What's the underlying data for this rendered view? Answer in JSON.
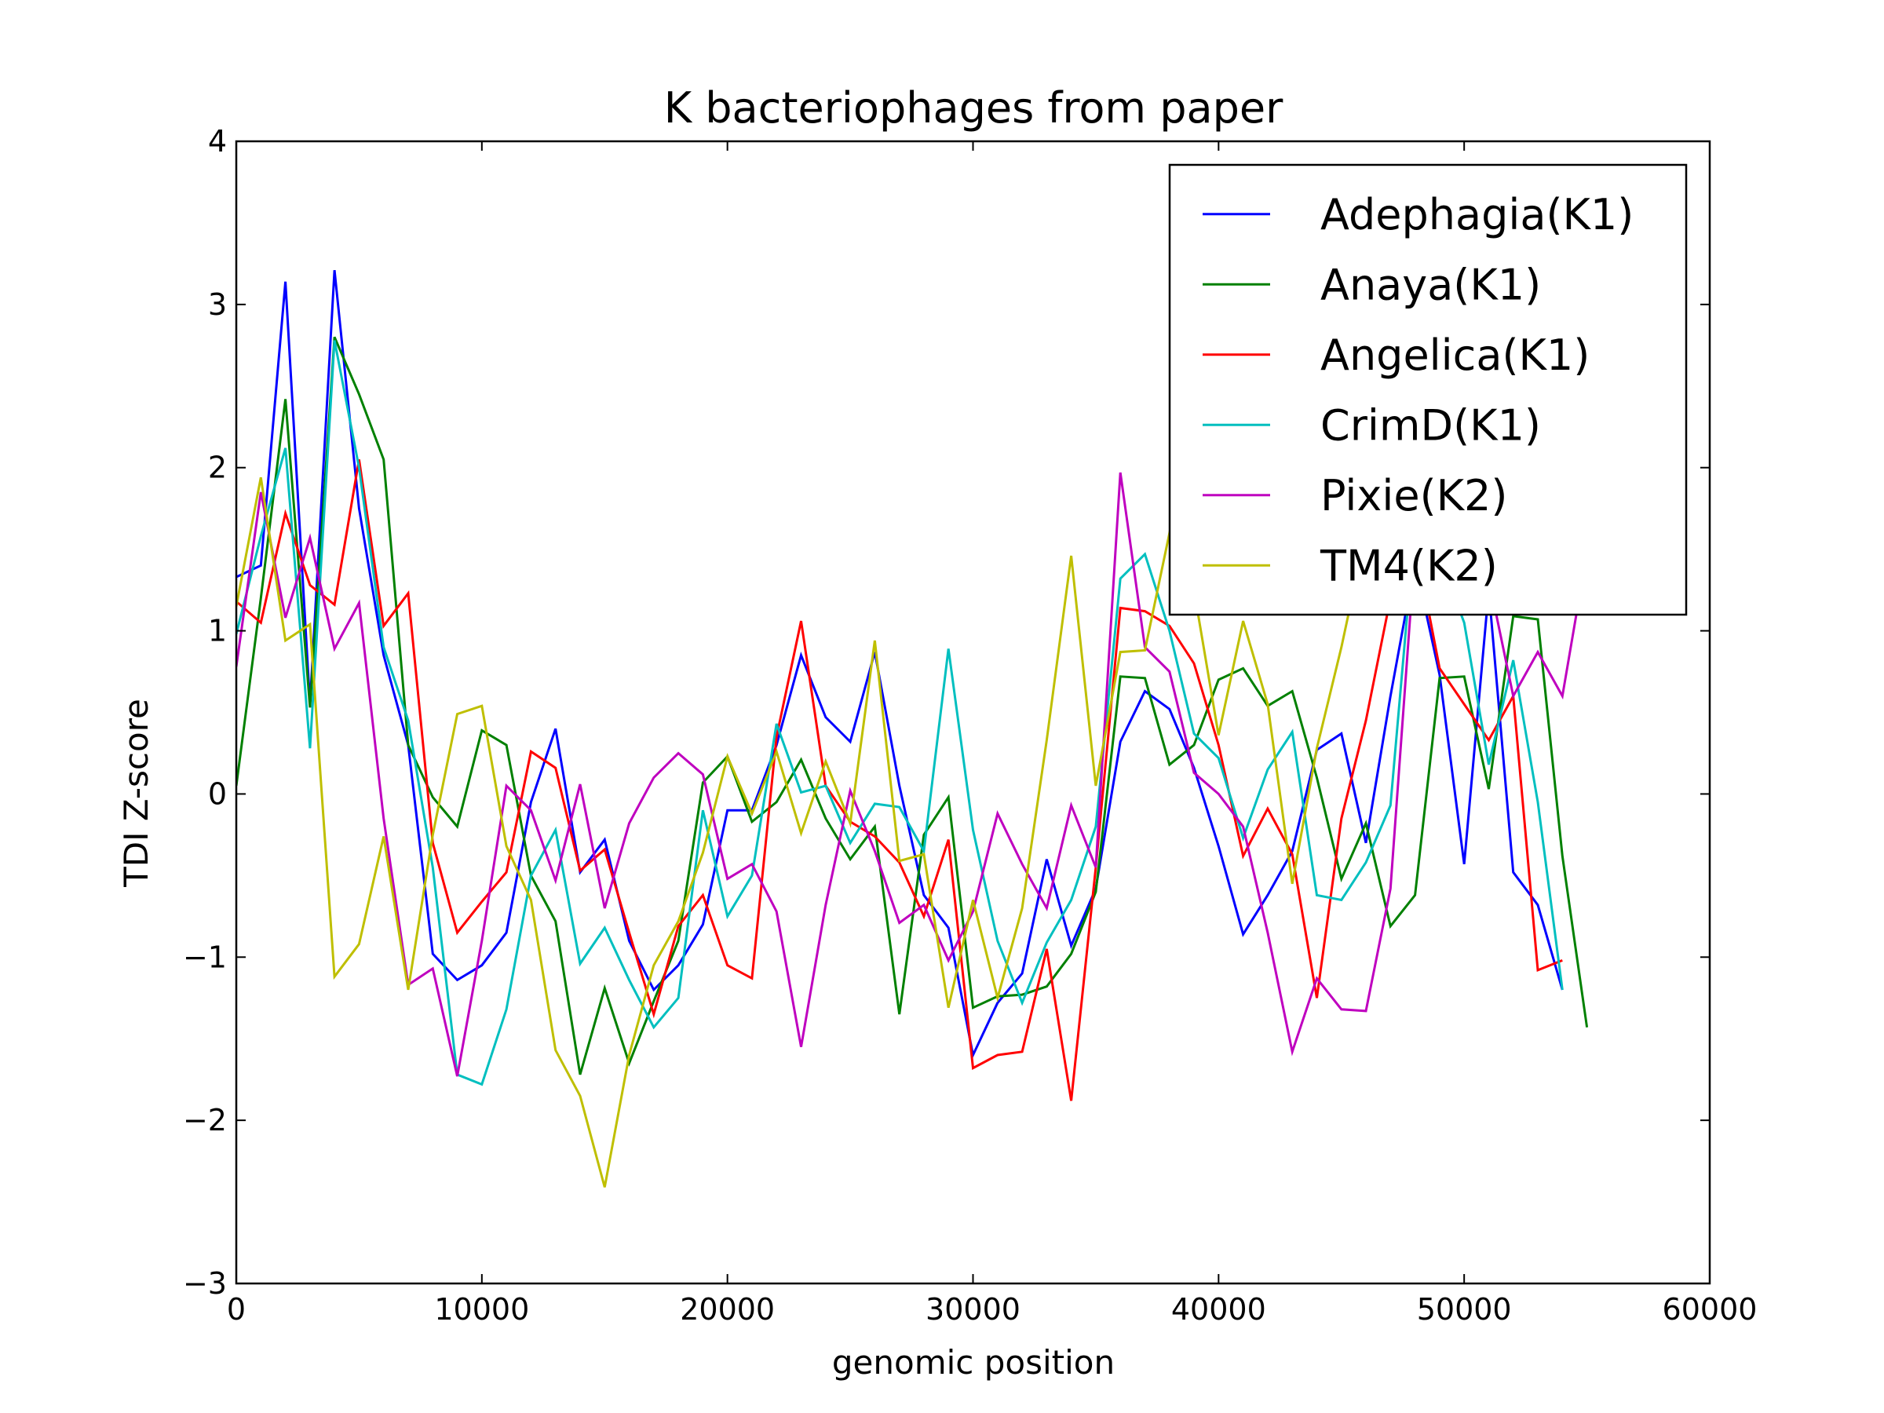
{
  "chart_data": {
    "type": "line",
    "title": "K bacteriophages from paper",
    "xlabel": "genomic position",
    "ylabel": "TDI Z-score",
    "xlim": [
      0,
      60000
    ],
    "ylim": [
      -3,
      4
    ],
    "xticks": [
      0,
      10000,
      20000,
      30000,
      40000,
      50000,
      60000
    ],
    "yticks": [
      -3,
      -2,
      -1,
      0,
      1,
      2,
      3,
      4
    ],
    "xtick_labels": [
      "0",
      "10000",
      "20000",
      "30000",
      "40000",
      "50000",
      "60000"
    ],
    "ytick_labels": [
      "−3",
      "−2",
      "−1",
      "0",
      "1",
      "2",
      "3",
      "4"
    ],
    "grid": false,
    "legend_position": "top-right",
    "series": [
      {
        "name": "Adephagia(K1)",
        "color": "#0000ff",
        "x": [
          0,
          1000,
          2000,
          3000,
          4000,
          5000,
          6000,
          7000,
          8000,
          9000,
          10000,
          11000,
          12000,
          13000,
          14000,
          15000,
          16000,
          17000,
          18000,
          19000,
          20000,
          21000,
          22000,
          23000,
          24000,
          25000,
          26000,
          27000,
          28000,
          29000,
          30000,
          31000,
          32000,
          33000,
          34000,
          35000,
          36000,
          37000,
          38000,
          39000,
          40000,
          41000,
          42000,
          43000,
          44000,
          45000,
          46000,
          47000,
          48000,
          49000,
          50000,
          51000,
          52000,
          53000,
          54000
        ],
        "y": [
          1.33,
          1.4,
          3.14,
          0.55,
          3.21,
          1.75,
          0.85,
          0.3,
          -0.98,
          -1.14,
          -1.05,
          -0.85,
          -0.05,
          0.4,
          -0.48,
          -0.28,
          -0.9,
          -1.2,
          -1.05,
          -0.8,
          -0.1,
          -0.1,
          0.3,
          0.85,
          0.47,
          0.32,
          0.87,
          0.05,
          -0.62,
          -0.82,
          -1.6,
          -1.28,
          -1.1,
          -0.4,
          -0.93,
          -0.58,
          0.32,
          0.63,
          0.52,
          0.16,
          -0.32,
          -0.86,
          -0.62,
          -0.35,
          0.27,
          0.37,
          -0.3,
          0.6,
          1.42,
          0.73,
          -0.43,
          1.25,
          -0.48,
          -0.68,
          -1.2
        ]
      },
      {
        "name": "Anaya(K1)",
        "color": "#008000",
        "x": [
          0,
          1000,
          2000,
          3000,
          4000,
          5000,
          6000,
          7000,
          8000,
          9000,
          10000,
          11000,
          12000,
          13000,
          14000,
          15000,
          16000,
          17000,
          18000,
          19000,
          20000,
          21000,
          22000,
          23000,
          24000,
          25000,
          26000,
          27000,
          28000,
          29000,
          30000,
          31000,
          32000,
          33000,
          34000,
          35000,
          36000,
          37000,
          38000,
          39000,
          40000,
          41000,
          42000,
          43000,
          44000,
          45000,
          46000,
          47000,
          48000,
          49000,
          50000,
          51000,
          52000,
          53000,
          54000,
          55000
        ],
        "y": [
          0.05,
          1.2,
          2.42,
          0.53,
          2.8,
          2.45,
          2.05,
          0.3,
          -0.02,
          -0.2,
          0.39,
          0.3,
          -0.5,
          -0.78,
          -1.72,
          -1.19,
          -1.65,
          -1.27,
          -0.9,
          0.07,
          0.23,
          -0.17,
          -0.05,
          0.21,
          -0.15,
          -0.4,
          -0.2,
          -1.35,
          -0.25,
          -0.02,
          -1.31,
          -1.24,
          -1.23,
          -1.18,
          -0.98,
          -0.6,
          0.72,
          0.71,
          0.18,
          0.3,
          0.7,
          0.77,
          0.54,
          0.63,
          0.1,
          -0.52,
          -0.18,
          -0.81,
          -0.62,
          0.71,
          0.72,
          0.03,
          1.09,
          1.07,
          -0.38,
          -1.43
        ]
      },
      {
        "name": "Angelica(K1)",
        "color": "#ff0000",
        "x": [
          0,
          1000,
          2000,
          3000,
          4000,
          5000,
          6000,
          7000,
          8000,
          9000,
          10000,
          11000,
          12000,
          13000,
          14000,
          15000,
          16000,
          17000,
          18000,
          19000,
          20000,
          21000,
          22000,
          23000,
          24000,
          25000,
          26000,
          27000,
          28000,
          29000,
          30000,
          31000,
          32000,
          33000,
          34000,
          35000,
          36000,
          37000,
          38000,
          39000,
          40000,
          41000,
          42000,
          43000,
          44000,
          45000,
          46000,
          47000,
          48000,
          49000,
          50000,
          51000,
          52000,
          53000,
          54000
        ],
        "y": [
          1.18,
          1.05,
          1.72,
          1.28,
          1.16,
          2.05,
          1.03,
          1.23,
          -0.3,
          -0.85,
          -0.66,
          -0.48,
          0.26,
          0.16,
          -0.47,
          -0.34,
          -0.85,
          -1.35,
          -0.81,
          -0.62,
          -1.05,
          -1.13,
          0.35,
          1.06,
          0.05,
          -0.17,
          -0.26,
          -0.42,
          -0.75,
          -0.28,
          -1.68,
          -1.6,
          -1.58,
          -0.95,
          -1.88,
          -0.45,
          1.14,
          1.12,
          1.03,
          0.8,
          0.3,
          -0.38,
          -0.09,
          -0.37,
          -1.25,
          -0.15,
          0.45,
          1.2,
          1.55,
          0.77,
          0.55,
          0.33,
          0.6,
          -1.08,
          -1.02
        ]
      },
      {
        "name": "CrimD(K1)",
        "color": "#00bfbf",
        "x": [
          0,
          1000,
          2000,
          3000,
          4000,
          5000,
          6000,
          7000,
          8000,
          9000,
          10000,
          11000,
          12000,
          13000,
          14000,
          15000,
          16000,
          17000,
          18000,
          19000,
          20000,
          21000,
          22000,
          23000,
          24000,
          25000,
          26000,
          27000,
          28000,
          29000,
          30000,
          31000,
          32000,
          33000,
          34000,
          35000,
          36000,
          37000,
          38000,
          39000,
          40000,
          41000,
          42000,
          43000,
          44000,
          45000,
          46000,
          47000,
          48000,
          49000,
          50000,
          51000,
          52000,
          53000,
          54000
        ],
        "y": [
          0.98,
          1.58,
          2.12,
          0.28,
          2.78,
          2.0,
          0.9,
          0.45,
          -0.45,
          -1.72,
          -1.78,
          -1.32,
          -0.5,
          -0.22,
          -1.04,
          -0.82,
          -1.14,
          -1.43,
          -1.25,
          -0.1,
          -0.75,
          -0.5,
          0.43,
          0.01,
          0.05,
          -0.3,
          -0.06,
          -0.08,
          -0.35,
          0.89,
          -0.22,
          -0.9,
          -1.28,
          -0.91,
          -0.65,
          -0.2,
          1.32,
          1.47,
          1.0,
          0.37,
          0.22,
          -0.27,
          0.15,
          0.38,
          -0.62,
          -0.65,
          -0.42,
          -0.07,
          1.65,
          1.45,
          1.05,
          0.18,
          0.82,
          -0.05,
          -1.2
        ]
      },
      {
        "name": "Pixie(K2)",
        "color": "#bf00bf",
        "x": [
          0,
          1000,
          2000,
          3000,
          4000,
          5000,
          6000,
          7000,
          8000,
          9000,
          10000,
          11000,
          12000,
          13000,
          14000,
          15000,
          16000,
          17000,
          18000,
          19000,
          20000,
          21000,
          22000,
          23000,
          24000,
          25000,
          26000,
          27000,
          28000,
          29000,
          30000,
          31000,
          32000,
          33000,
          34000,
          35000,
          36000,
          37000,
          38000,
          39000,
          40000,
          41000,
          42000,
          43000,
          44000,
          45000,
          46000,
          47000,
          48000,
          49000,
          50000,
          51000,
          52000,
          53000,
          54000,
          55000,
          56000
        ],
        "y": [
          0.78,
          1.85,
          1.08,
          1.57,
          0.89,
          1.17,
          -0.15,
          -1.17,
          -1.07,
          -1.73,
          -0.9,
          0.05,
          -0.1,
          -0.53,
          0.06,
          -0.7,
          -0.18,
          0.1,
          0.25,
          0.12,
          -0.52,
          -0.43,
          -0.72,
          -1.55,
          -0.68,
          0.02,
          -0.35,
          -0.79,
          -0.68,
          -1.02,
          -0.72,
          -0.12,
          -0.43,
          -0.7,
          -0.07,
          -0.45,
          1.97,
          0.9,
          0.75,
          0.13,
          0.0,
          -0.2,
          -0.85,
          -1.58,
          -1.13,
          -1.32,
          -1.33,
          -0.58,
          1.5,
          1.68,
          1.55,
          1.32,
          0.6,
          0.87,
          0.6,
          1.48,
          1.13
        ]
      },
      {
        "name": "TM4(K2)",
        "color": "#bfbf00",
        "x": [
          0,
          1000,
          2000,
          3000,
          4000,
          5000,
          6000,
          7000,
          8000,
          9000,
          10000,
          11000,
          12000,
          13000,
          14000,
          15000,
          16000,
          17000,
          18000,
          19000,
          20000,
          21000,
          22000,
          23000,
          24000,
          25000,
          26000,
          27000,
          28000,
          29000,
          30000,
          31000,
          32000,
          33000,
          34000,
          35000,
          36000,
          37000,
          38000,
          39000,
          40000,
          41000,
          42000,
          43000,
          44000,
          45000,
          46000,
          47000,
          48000,
          49000,
          50000,
          51000,
          52000,
          53000,
          54000
        ],
        "y": [
          1.15,
          1.94,
          0.94,
          1.04,
          -1.12,
          -0.92,
          -0.26,
          -1.2,
          -0.25,
          0.49,
          0.54,
          -0.32,
          -0.65,
          -1.57,
          -1.85,
          -2.41,
          -1.6,
          -1.05,
          -0.78,
          -0.36,
          0.23,
          -0.12,
          0.26,
          -0.24,
          0.2,
          -0.18,
          0.94,
          -0.41,
          -0.37,
          -1.31,
          -0.65,
          -1.25,
          -0.7,
          0.33,
          1.46,
          0.05,
          0.87,
          0.88,
          1.6,
          1.25,
          0.36,
          1.06,
          0.55,
          -0.55,
          0.28,
          0.9,
          1.6,
          1.65,
          1.55,
          1.45,
          1.35,
          1.25,
          1.3,
          1.35,
          1.3
        ]
      }
    ]
  }
}
